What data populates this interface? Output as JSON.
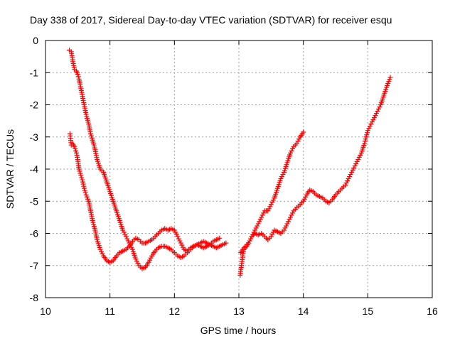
{
  "chart_data": {
    "type": "scatter",
    "title": "Day 338 of 2017, Sidereal Day-to-day VTEC variation (SDTVAR) for receiver esqu",
    "xlabel": "GPS time / hours",
    "ylabel": "SDTVAR / TECUs",
    "xlim": [
      10,
      16
    ],
    "ylim": [
      -8,
      0
    ],
    "xticks": [
      "10",
      "11",
      "12",
      "13",
      "14",
      "15",
      "16"
    ],
    "yticks": [
      "0",
      "-1",
      "-2",
      "-3",
      "-4",
      "-5",
      "-6",
      "-7",
      "-8"
    ],
    "grid": true,
    "marker": "plus",
    "color": "#ff0000",
    "series": [
      {
        "x": [
          10.37,
          10.4,
          10.42,
          10.45,
          10.48,
          10.5,
          10.52,
          10.55,
          10.58,
          10.6,
          10.63,
          10.67,
          10.7,
          10.73,
          10.77,
          10.8,
          10.85,
          10.9,
          10.95,
          11.0,
          11.05,
          11.1,
          11.15,
          11.2,
          11.25,
          11.3,
          11.35,
          11.4,
          11.45,
          11.5,
          11.55,
          11.6,
          11.65,
          11.7,
          11.75,
          11.8,
          11.85,
          11.9,
          11.95,
          12.0,
          12.05,
          12.1,
          12.15,
          12.2,
          12.25,
          12.3,
          12.35,
          12.4,
          12.45,
          12.5,
          12.55,
          12.6,
          12.65,
          12.7,
          12.75,
          12.8
        ],
        "y": [
          -0.3,
          -0.35,
          -0.6,
          -0.9,
          -0.95,
          -1.05,
          -1.2,
          -1.5,
          -1.8,
          -2.0,
          -2.3,
          -2.6,
          -2.9,
          -3.1,
          -3.4,
          -3.7,
          -4.0,
          -4.1,
          -4.4,
          -4.7,
          -5.0,
          -5.3,
          -5.6,
          -5.9,
          -6.1,
          -6.3,
          -6.5,
          -6.8,
          -7.0,
          -7.1,
          -7.05,
          -6.9,
          -6.7,
          -6.55,
          -6.45,
          -6.4,
          -6.4,
          -6.45,
          -6.5,
          -6.6,
          -6.7,
          -6.75,
          -6.7,
          -6.6,
          -6.5,
          -6.4,
          -6.35,
          -6.4,
          -6.45,
          -6.4,
          -6.35,
          -6.4,
          -6.45,
          -6.4,
          -6.35,
          -6.3
        ]
      },
      {
        "x": [
          10.38,
          10.4,
          10.42,
          10.45,
          10.48,
          10.5,
          10.52,
          10.55,
          10.58,
          10.6,
          10.63,
          10.67,
          10.7,
          10.73,
          10.77,
          10.8,
          10.85,
          10.9,
          10.95,
          11.0,
          11.05,
          11.1,
          11.15,
          11.2,
          11.25,
          11.3,
          11.35,
          11.4,
          11.45,
          11.5,
          11.55,
          11.6,
          11.65,
          11.7,
          11.75,
          11.8,
          11.85,
          11.9,
          11.95,
          12.0,
          12.05,
          12.1,
          12.15,
          12.2,
          12.25,
          12.3,
          12.35,
          12.4,
          12.45,
          12.5,
          12.55,
          12.6,
          12.65,
          12.7
        ],
        "y": [
          -2.9,
          -3.25,
          -3.2,
          -3.3,
          -3.5,
          -3.7,
          -4.0,
          -4.2,
          -4.4,
          -4.6,
          -4.8,
          -5.0,
          -5.3,
          -5.6,
          -5.9,
          -6.2,
          -6.5,
          -6.7,
          -6.85,
          -6.9,
          -6.85,
          -6.7,
          -6.6,
          -6.55,
          -6.5,
          -6.4,
          -6.25,
          -6.15,
          -6.2,
          -6.3,
          -6.3,
          -6.25,
          -6.2,
          -6.1,
          -6.0,
          -5.9,
          -5.85,
          -5.9,
          -5.85,
          -5.9,
          -6.1,
          -6.3,
          -6.5,
          -6.55,
          -6.45,
          -6.4,
          -6.35,
          -6.3,
          -6.25,
          -6.3,
          -6.35,
          -6.25,
          -6.2,
          -6.15
        ]
      },
      {
        "x": [
          13.02,
          13.04,
          13.06,
          13.08,
          13.12,
          13.15,
          13.2,
          13.25,
          13.3,
          13.35,
          13.4,
          13.45,
          13.5,
          13.55,
          13.6,
          13.65,
          13.7,
          13.75,
          13.8,
          13.85,
          13.9,
          13.95,
          14.0
        ],
        "y": [
          -7.3,
          -7.0,
          -6.7,
          -6.5,
          -6.4,
          -6.3,
          -6.1,
          -5.9,
          -5.7,
          -5.5,
          -5.3,
          -5.3,
          -5.1,
          -4.9,
          -4.6,
          -4.3,
          -4.1,
          -3.8,
          -3.5,
          -3.3,
          -3.2,
          -3.0,
          -2.85
        ]
      },
      {
        "x": [
          13.03,
          13.06,
          13.1,
          13.15,
          13.2,
          13.25,
          13.3,
          13.35,
          13.4,
          13.45,
          13.5,
          13.55,
          13.6,
          13.65,
          13.7,
          13.75,
          13.8,
          13.85,
          13.9,
          13.95,
          14.0,
          14.05,
          14.1,
          14.15,
          14.2,
          14.25,
          14.3,
          14.35,
          14.4,
          14.45,
          14.5,
          14.55,
          14.6,
          14.65,
          14.7,
          14.75,
          14.8,
          14.85,
          14.9,
          14.95,
          15.0,
          15.05,
          15.1,
          15.15,
          15.2,
          15.25,
          15.3,
          15.35
        ],
        "y": [
          -6.6,
          -6.5,
          -6.4,
          -6.3,
          -6.1,
          -6.0,
          -6.05,
          -6.0,
          -6.1,
          -6.2,
          -6.1,
          -5.9,
          -5.95,
          -6.0,
          -5.9,
          -5.7,
          -5.5,
          -5.3,
          -5.2,
          -5.1,
          -5.0,
          -4.8,
          -4.65,
          -4.7,
          -4.8,
          -4.85,
          -4.9,
          -5.0,
          -5.05,
          -4.95,
          -4.8,
          -4.7,
          -4.6,
          -4.5,
          -4.3,
          -4.1,
          -3.9,
          -3.7,
          -3.5,
          -3.2,
          -2.8,
          -2.6,
          -2.4,
          -2.2,
          -2.0,
          -1.7,
          -1.4,
          -1.15
        ]
      }
    ]
  }
}
